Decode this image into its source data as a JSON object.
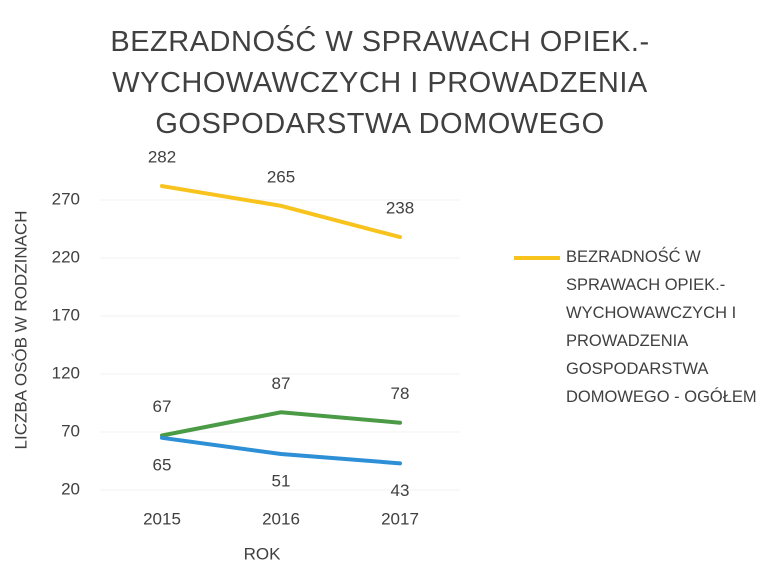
{
  "chart_data": {
    "type": "line",
    "title": "BEZRADNOŚĆ W SPRAWACH OPIEK.-WYCHOWAWCZYCH I PROWADZENIA GOSPODARSTWA DOMOWEGO",
    "xlabel": "ROK",
    "ylabel": "LICZBA OSÓB W RODZINACH",
    "categories": [
      "2015",
      "2016",
      "2017"
    ],
    "series": [
      {
        "name": "BEZRADNOŚĆ W SPRAWACH OPIEK.-WYCHOWAWCZYCH I PROWADZENIA GOSPODARSTWA DOMOWEGO - OGÓŁEM",
        "color": "#f7c31c",
        "values": [
          282,
          265,
          238
        ]
      },
      {
        "color": "#4b9a45",
        "values": [
          67,
          87,
          78
        ]
      },
      {
        "color": "#2d8fd5",
        "values": [
          65,
          51,
          43
        ]
      }
    ],
    "ylim": [
      20,
      290
    ],
    "yticks": [
      20,
      70,
      120,
      170,
      220,
      270
    ],
    "grid": true,
    "legend": "right"
  }
}
